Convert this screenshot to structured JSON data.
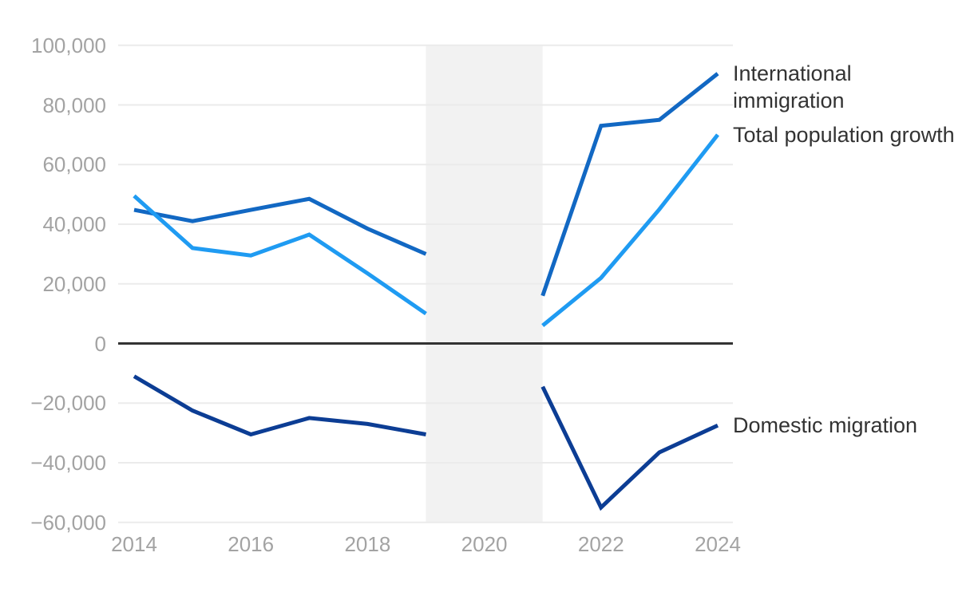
{
  "chart_data": {
    "type": "line",
    "title": "",
    "xlim": [
      2014,
      2024
    ],
    "ylim": [
      -60000,
      100000
    ],
    "grid": true,
    "colors": {
      "grid": "#ebebeb",
      "zero_line": "#333333",
      "tick_label": "#a3a3a3",
      "annotation": "#333333",
      "gap_band": "#f2f2f2",
      "background": "#ffffff"
    },
    "x_ticks": [
      {
        "label": "2014",
        "year": 2014
      },
      {
        "label": "2016",
        "year": 2016
      },
      {
        "label": "2018",
        "year": 2018
      },
      {
        "label": "2020",
        "year": 2020
      },
      {
        "label": "2022",
        "year": 2022
      },
      {
        "label": "2024",
        "year": 2024
      }
    ],
    "y_ticks": [
      {
        "label": "100,000",
        "value": 100000
      },
      {
        "label": "80,000",
        "value": 80000
      },
      {
        "label": "60,000",
        "value": 60000
      },
      {
        "label": "40,000",
        "value": 40000
      },
      {
        "label": "20,000",
        "value": 20000
      },
      {
        "label": "0",
        "value": 0
      },
      {
        "label": "−20,000",
        "value": -20000
      },
      {
        "label": "−40,000",
        "value": -40000
      },
      {
        "label": "−60,000",
        "value": -60000
      }
    ],
    "gap_band": {
      "from": 2019,
      "to": 2021
    },
    "series": [
      {
        "name": "International immigration",
        "slug": "international-immigration",
        "color": "#1268c3",
        "label_lines": [
          "International",
          "immigration"
        ],
        "segments": [
          {
            "x": [
              2014,
              2015,
              2016,
              2017,
              2018,
              2019
            ],
            "y": [
              44800,
              41000,
              44800,
              48500,
              38500,
              30000
            ]
          },
          {
            "x": [
              2021,
              2022,
              2023,
              2024
            ],
            "y": [
              16000,
              73000,
              75000,
              90500
            ]
          }
        ]
      },
      {
        "name": "Total population growth",
        "slug": "total-population-growth",
        "color": "#1f9bf2",
        "label_lines": [
          "Total population growth"
        ],
        "segments": [
          {
            "x": [
              2014,
              2015,
              2016,
              2017,
              2018,
              2019
            ],
            "y": [
              49500,
              32000,
              29500,
              36500,
              23500,
              10000
            ]
          },
          {
            "x": [
              2021,
              2022,
              2023,
              2024
            ],
            "y": [
              6000,
              22000,
              45000,
              70000
            ]
          }
        ]
      },
      {
        "name": "Domestic migration",
        "slug": "domestic-migration",
        "color": "#0c3d94",
        "label_lines": [
          "Domestic migration"
        ],
        "segments": [
          {
            "x": [
              2014,
              2015,
              2016,
              2017,
              2018,
              2019
            ],
            "y": [
              -11000,
              -22500,
              -30500,
              -25000,
              -27000,
              -30500
            ]
          },
          {
            "x": [
              2021,
              2022,
              2023,
              2024
            ],
            "y": [
              -14500,
              -55000,
              -36500,
              -27500
            ]
          }
        ]
      }
    ]
  }
}
